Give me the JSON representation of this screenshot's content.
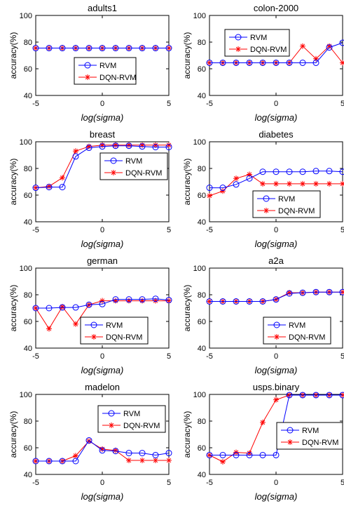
{
  "figure": {
    "colors": {
      "rvm": "#0000FF",
      "dqn": "#FF0000"
    },
    "legend": {
      "rvm_label": "RVM",
      "dqn_label": "DQN-RVM"
    }
  },
  "chart_data": [
    {
      "type": "line",
      "title": "adults1",
      "xlabel": "log(sigma)",
      "ylabel": "accuracy(%)",
      "xlim": [
        -5,
        5
      ],
      "ylim": [
        40,
        100
      ],
      "xticks": [
        -5,
        0,
        5
      ],
      "yticks": [
        40,
        60,
        80,
        100
      ],
      "legend_position": "center",
      "x": [
        -5,
        -4,
        -3,
        -2,
        -1,
        0,
        1,
        2,
        3,
        4,
        5
      ],
      "series": [
        {
          "name": "RVM",
          "marker": "circle",
          "values": [
            75.5,
            75.5,
            75.5,
            75.5,
            75.5,
            75.5,
            75.5,
            75.5,
            75.5,
            75.5,
            75.5
          ]
        },
        {
          "name": "DQN-RVM",
          "marker": "star",
          "values": [
            75.5,
            75.5,
            75.5,
            75.5,
            75.5,
            75.5,
            75.5,
            75.5,
            75.5,
            75.5,
            75.5
          ]
        }
      ]
    },
    {
      "type": "line",
      "title": "colon-2000",
      "xlabel": "log(sigma)",
      "ylabel": "accuracy(%)",
      "xlim": [
        -5,
        5
      ],
      "ylim": [
        40,
        100
      ],
      "xticks": [
        -5,
        0,
        5
      ],
      "yticks": [
        40,
        60,
        80,
        100
      ],
      "legend_position": "top-center",
      "x": [
        -5,
        -4,
        -3,
        -2,
        -1,
        0,
        1,
        2,
        3,
        4,
        5
      ],
      "series": [
        {
          "name": "RVM",
          "marker": "circle",
          "values": [
            64.5,
            64.5,
            64.5,
            64.5,
            64.5,
            64.5,
            64.5,
            64.5,
            64.5,
            76,
            79.5
          ]
        },
        {
          "name": "DQN-RVM",
          "marker": "star",
          "values": [
            64.5,
            64.5,
            64.5,
            64.5,
            64.5,
            64.5,
            64.5,
            77,
            67.5,
            77,
            64.5
          ]
        }
      ]
    },
    {
      "type": "line",
      "title": "breast",
      "xlabel": "log(sigma)",
      "ylabel": "accuracy(%)",
      "xlim": [
        -5,
        5
      ],
      "ylim": [
        40,
        100
      ],
      "xticks": [
        -5,
        0,
        5
      ],
      "yticks": [
        40,
        60,
        80,
        100
      ],
      "legend_position": "center-right",
      "x": [
        -5,
        -4,
        -3,
        -2,
        -1,
        0,
        1,
        2,
        3,
        4,
        5
      ],
      "series": [
        {
          "name": "RVM",
          "marker": "circle",
          "values": [
            65.5,
            66,
            66,
            89,
            95.5,
            96.5,
            97,
            97,
            96.5,
            96,
            96
          ]
        },
        {
          "name": "DQN-RVM",
          "marker": "star",
          "values": [
            65.5,
            66.5,
            73,
            93,
            96.5,
            97.5,
            97.5,
            97.5,
            97.5,
            97.5,
            97.5
          ]
        }
      ]
    },
    {
      "type": "line",
      "title": "diabetes",
      "xlabel": "log(sigma)",
      "ylabel": "accuracy(%)",
      "xlim": [
        -5,
        5
      ],
      "ylim": [
        40,
        100
      ],
      "xticks": [
        -5,
        0,
        5
      ],
      "yticks": [
        40,
        60,
        80,
        100
      ],
      "legend_position": "bottom-right",
      "x": [
        -5,
        -4,
        -3,
        -2,
        -1,
        0,
        1,
        2,
        3,
        4,
        5
      ],
      "series": [
        {
          "name": "RVM",
          "marker": "circle",
          "values": [
            65.5,
            65.5,
            68,
            72.5,
            77.5,
            77.5,
            77.5,
            77.5,
            78,
            78,
            77.5
          ]
        },
        {
          "name": "DQN-RVM",
          "marker": "star",
          "values": [
            59.5,
            63,
            72.5,
            75.5,
            68.5,
            68.5,
            68.5,
            68.5,
            68.5,
            68.5,
            68.5
          ]
        }
      ]
    },
    {
      "type": "line",
      "title": "german",
      "xlabel": "log(sigma)",
      "ylabel": "accuracy(%)",
      "xlim": [
        -5,
        5
      ],
      "ylim": [
        40,
        100
      ],
      "xticks": [
        -5,
        0,
        5
      ],
      "yticks": [
        40,
        60,
        80,
        100
      ],
      "legend_position": "bottom-right",
      "x": [
        -5,
        -4,
        -3,
        -2,
        -1,
        0,
        1,
        2,
        3,
        4,
        5
      ],
      "series": [
        {
          "name": "RVM",
          "marker": "circle",
          "values": [
            70,
            70,
            70.5,
            70.5,
            72.5,
            73,
            76.5,
            76.5,
            76.5,
            77,
            76
          ]
        },
        {
          "name": "DQN-RVM",
          "marker": "star",
          "values": [
            70,
            54.5,
            71,
            58,
            72.5,
            75.5,
            75.5,
            75.5,
            75.5,
            75.5,
            75.5
          ]
        }
      ]
    },
    {
      "type": "line",
      "title": "a2a",
      "xlabel": "log(sigma)",
      "ylabel": "accuracy(%)",
      "xlim": [
        -5,
        5
      ],
      "ylim": [
        40,
        100
      ],
      "xticks": [
        -5,
        0,
        5
      ],
      "yticks": [
        40,
        60,
        80,
        100
      ],
      "legend_position": "bottom-right",
      "x": [
        -5,
        -4,
        -3,
        -2,
        -1,
        0,
        1,
        2,
        3,
        4,
        5
      ],
      "series": [
        {
          "name": "RVM",
          "marker": "circle",
          "values": [
            75,
            75,
            75,
            75,
            75,
            76.5,
            81,
            81.5,
            82,
            82,
            82
          ]
        },
        {
          "name": "DQN-RVM",
          "marker": "star",
          "values": [
            75,
            75,
            75,
            75,
            75,
            76.5,
            81.5,
            81.5,
            82,
            82,
            82
          ]
        }
      ]
    },
    {
      "type": "line",
      "title": "madelon",
      "xlabel": "log(sigma)",
      "ylabel": "accuracy(%)",
      "xlim": [
        -5,
        5
      ],
      "ylim": [
        40,
        100
      ],
      "xticks": [
        -5,
        0,
        5
      ],
      "yticks": [
        40,
        60,
        80,
        100
      ],
      "legend_position": "top-right",
      "x": [
        -5,
        -4,
        -3,
        -2,
        -1,
        0,
        1,
        2,
        3,
        4,
        5
      ],
      "series": [
        {
          "name": "RVM",
          "marker": "circle",
          "values": [
            50,
            50,
            50,
            50,
            65.5,
            58,
            57.5,
            56,
            56,
            54.5,
            56
          ]
        },
        {
          "name": "DQN-RVM",
          "marker": "star",
          "values": [
            50,
            50,
            50,
            54,
            65,
            59,
            58,
            50.5,
            50.5,
            50.5,
            50.5
          ]
        }
      ]
    },
    {
      "type": "line",
      "title": "usps.binary",
      "xlabel": "log(sigma)",
      "ylabel": "accuracy(%)",
      "xlim": [
        -5,
        5
      ],
      "ylim": [
        40,
        100
      ],
      "xticks": [
        -5,
        0,
        5
      ],
      "yticks": [
        40,
        60,
        80,
        100
      ],
      "legend_position": "center-right",
      "x": [
        -5,
        -4,
        -3,
        -2,
        -1,
        0,
        1,
        2,
        3,
        4,
        5
      ],
      "series": [
        {
          "name": "RVM",
          "marker": "circle",
          "values": [
            54.5,
            54.5,
            54.5,
            54.5,
            54.5,
            54.5,
            99.5,
            99.5,
            99.5,
            99.5,
            99.5
          ]
        },
        {
          "name": "DQN-RVM",
          "marker": "star",
          "values": [
            54.5,
            49.5,
            56.5,
            56,
            79,
            96,
            99.5,
            99.5,
            99.5,
            99.5,
            99.5
          ]
        }
      ]
    }
  ]
}
